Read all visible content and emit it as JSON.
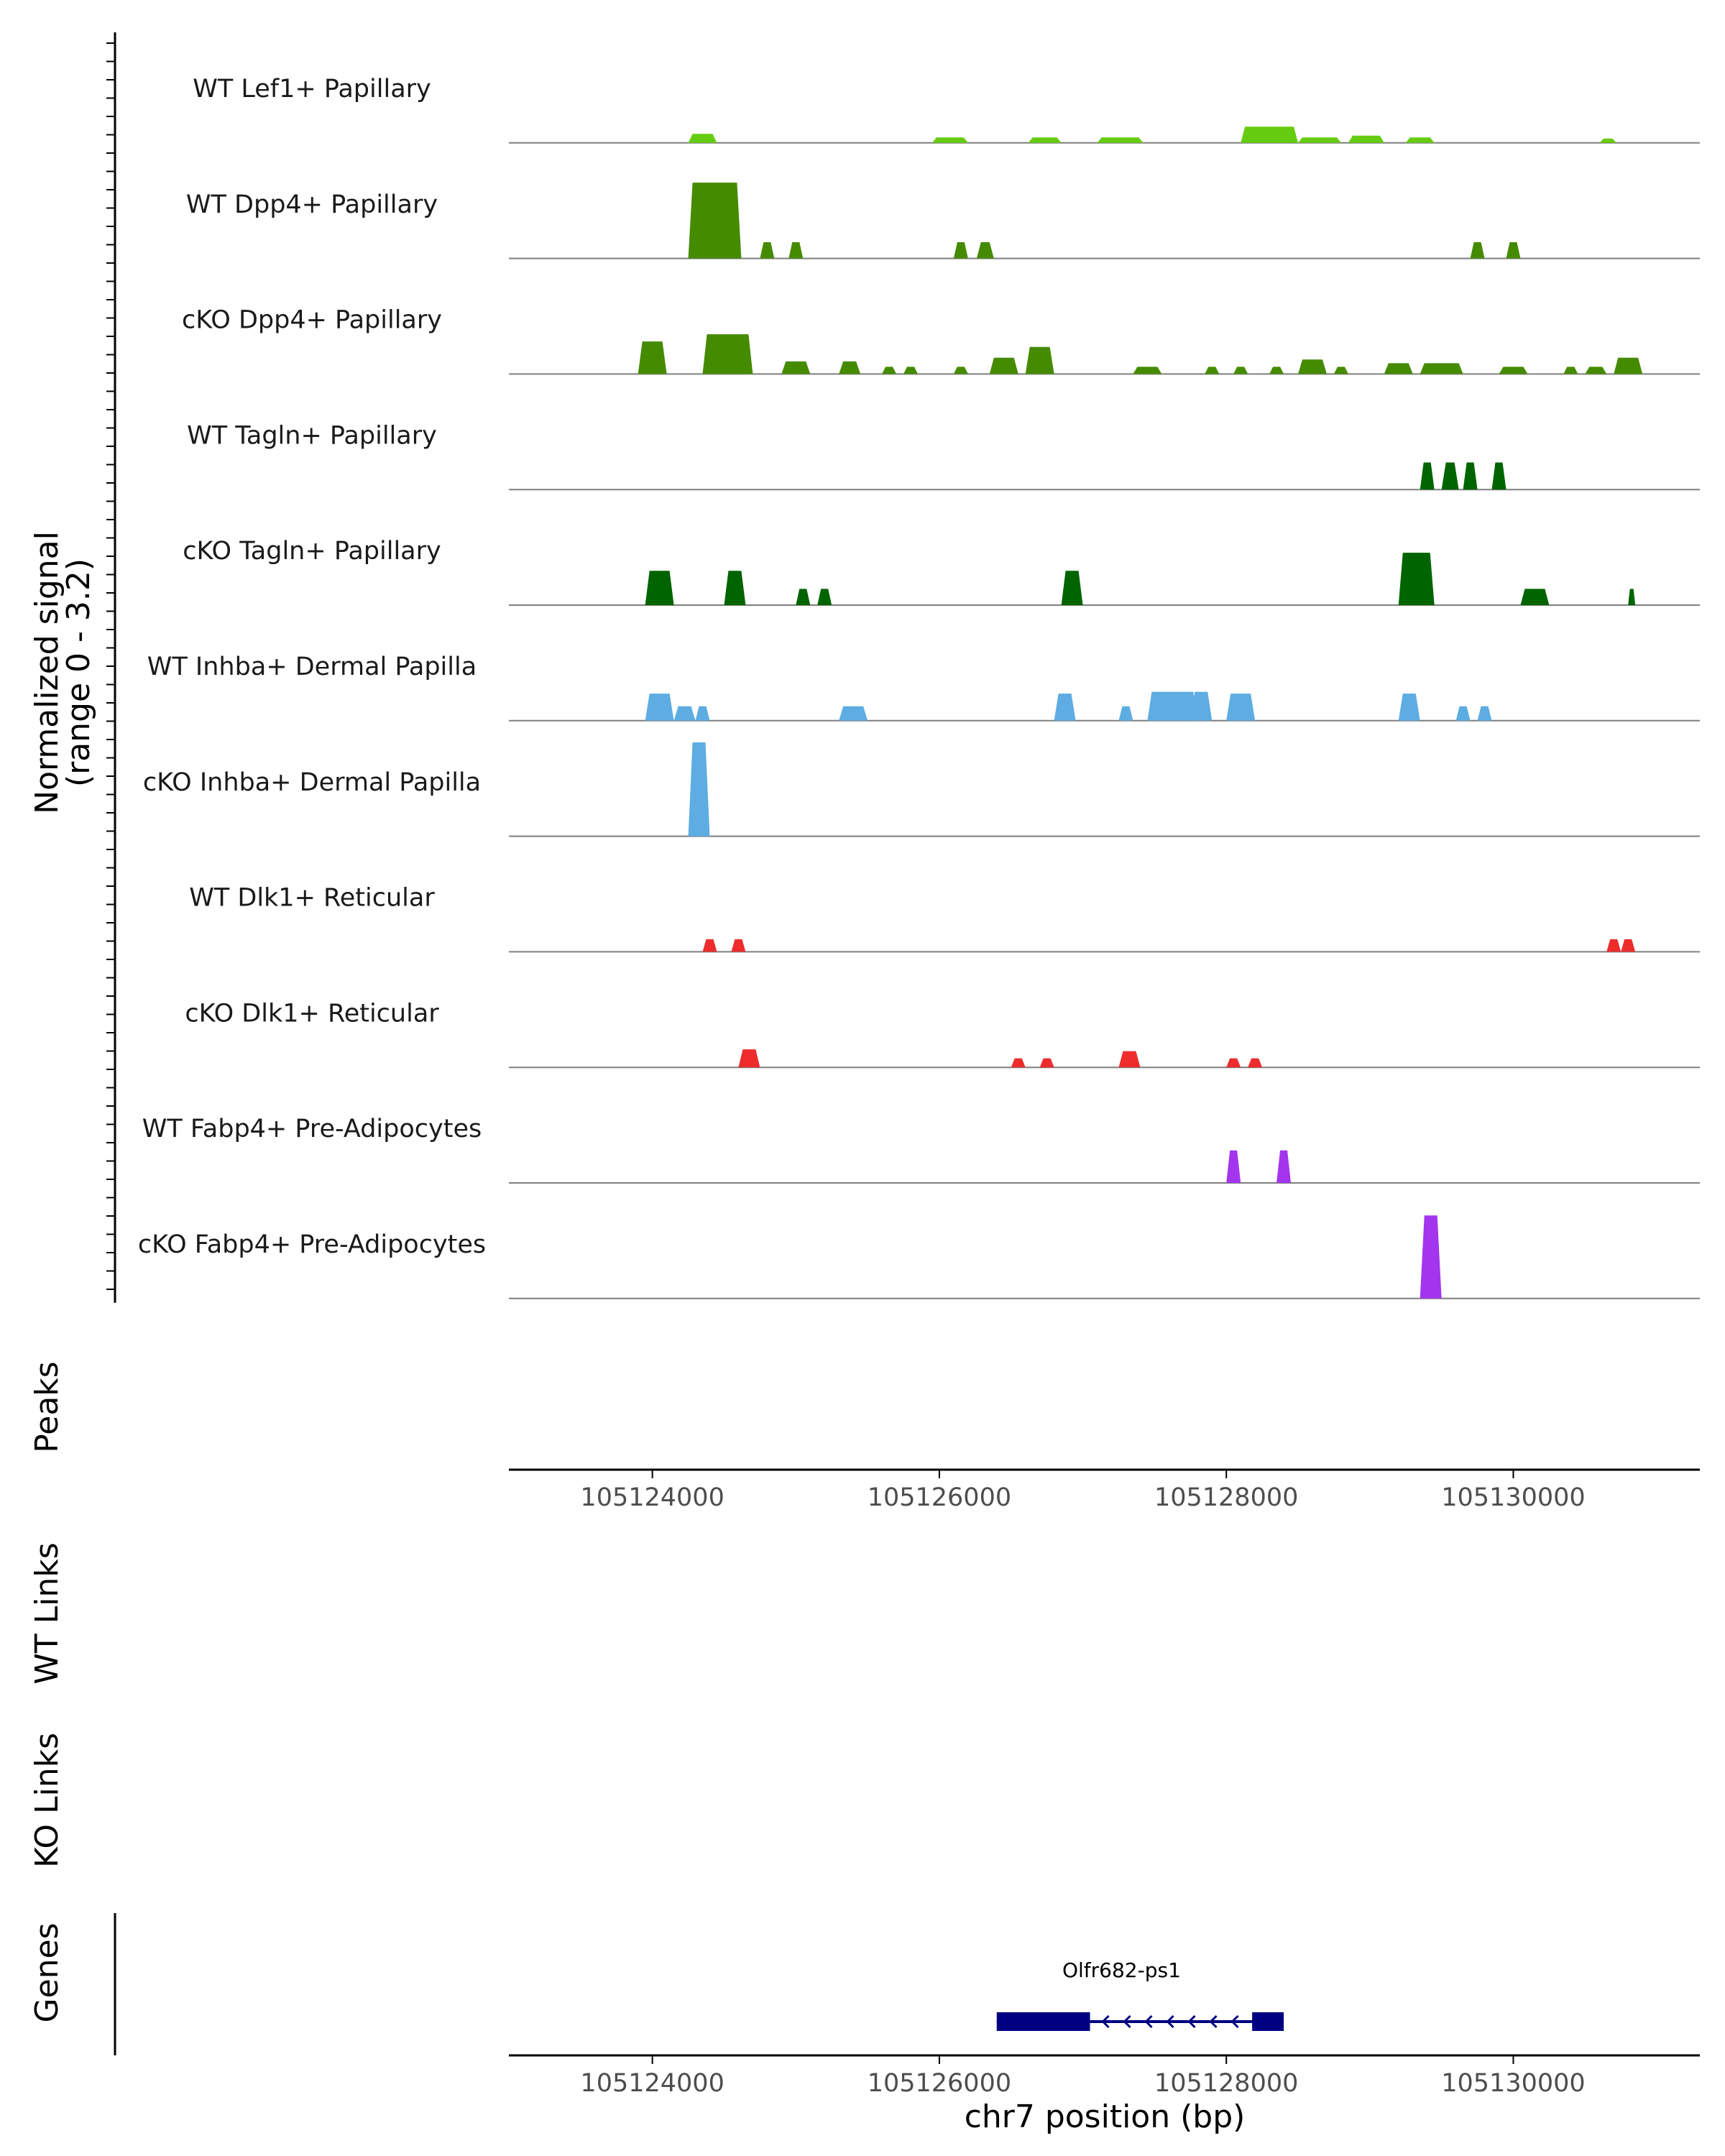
{
  "chart_data": {
    "type": "area",
    "title": "",
    "region": {
      "chromosome": "chr7",
      "start": 105123000,
      "end": 105131300
    },
    "coverage": {
      "ylabel_line1": "Normalized signal",
      "ylabel_line2": "(range 0 - 3.2)",
      "ylim": [
        0,
        3.2
      ],
      "tracks": [
        {
          "label": "WT Lef1+ Papillary",
          "color": "#66CC11",
          "peaks": [
            [
              105124250,
              105124450,
              0.25
            ],
            [
              105125950,
              105126200,
              0.15
            ],
            [
              105126620,
              105126850,
              0.15
            ],
            [
              105127100,
              105127420,
              0.15
            ],
            [
              105128100,
              105128500,
              0.45
            ],
            [
              105128500,
              105128800,
              0.15
            ],
            [
              105128850,
              105129100,
              0.2
            ],
            [
              105129250,
              105129450,
              0.15
            ],
            [
              105130600,
              105130720,
              0.12
            ]
          ]
        },
        {
          "label": "WT Dpp4+ Papillary",
          "color": "#458B00",
          "peaks": [
            [
              105124250,
              105124620,
              2.1
            ],
            [
              105124750,
              105124850,
              0.45
            ],
            [
              105124950,
              105125050,
              0.45
            ],
            [
              105126100,
              105126200,
              0.45
            ],
            [
              105126260,
              105126380,
              0.45
            ],
            [
              105129700,
              105129800,
              0.45
            ],
            [
              105129950,
              105130050,
              0.45
            ]
          ]
        },
        {
          "label": "cKO Dpp4+ Papillary",
          "color": "#458B00",
          "peaks": [
            [
              105123900,
              105124100,
              0.9
            ],
            [
              105124350,
              105124700,
              1.1
            ],
            [
              105124900,
              105125100,
              0.35
            ],
            [
              105125300,
              105125450,
              0.35
            ],
            [
              105125600,
              105125700,
              0.2
            ],
            [
              105125750,
              105125850,
              0.2
            ],
            [
              105126100,
              105126200,
              0.2
            ],
            [
              105126350,
              105126550,
              0.45
            ],
            [
              105126600,
              105126800,
              0.75
            ],
            [
              105127350,
              105127550,
              0.2
            ],
            [
              105127850,
              105127950,
              0.2
            ],
            [
              105128050,
              105128150,
              0.2
            ],
            [
              105128300,
              105128400,
              0.2
            ],
            [
              105128500,
              105128700,
              0.4
            ],
            [
              105128750,
              105128850,
              0.2
            ],
            [
              105129100,
              105129300,
              0.3
            ],
            [
              105129350,
              105129650,
              0.3
            ],
            [
              105129900,
              105130100,
              0.2
            ],
            [
              105130350,
              105130450,
              0.2
            ],
            [
              105130500,
              105130650,
              0.2
            ],
            [
              105130700,
              105130900,
              0.45
            ]
          ]
        },
        {
          "label": "WT Tagln+ Papillary",
          "color": "#006400",
          "peaks": [
            [
              105129350,
              105129450,
              0.75
            ],
            [
              105129500,
              105129620,
              0.75
            ],
            [
              105129650,
              105129750,
              0.75
            ],
            [
              105129850,
              105129950,
              0.75
            ]
          ]
        },
        {
          "label": "cKO Tagln+ Papillary",
          "color": "#006400",
          "peaks": [
            [
              105123950,
              105124150,
              0.95
            ],
            [
              105124500,
              105124650,
              0.95
            ],
            [
              105125000,
              105125100,
              0.45
            ],
            [
              105125150,
              105125250,
              0.45
            ],
            [
              105126850,
              105127000,
              0.95
            ],
            [
              105129200,
              105129450,
              1.45
            ],
            [
              105130050,
              105130250,
              0.45
            ],
            [
              105130800,
              105130850,
              0.45
            ]
          ]
        },
        {
          "label": "WT Inhba+ Dermal Papilla",
          "color": "#5DADE2",
          "peaks": [
            [
              105123950,
              105124150,
              0.75
            ],
            [
              105124150,
              105124300,
              0.4
            ],
            [
              105124300,
              105124400,
              0.4
            ],
            [
              105125300,
              105125500,
              0.4
            ],
            [
              105126800,
              105126950,
              0.75
            ],
            [
              105127250,
              105127350,
              0.4
            ],
            [
              105127450,
              105127800,
              0.8
            ],
            [
              105127750,
              105127900,
              0.8
            ],
            [
              105128000,
              105128200,
              0.75
            ],
            [
              105129200,
              105129350,
              0.75
            ],
            [
              105129600,
              105129700,
              0.4
            ],
            [
              105129750,
              105129850,
              0.4
            ]
          ]
        },
        {
          "label": "cKO Inhba+ Dermal Papilla",
          "color": "#5DADE2",
          "peaks": [
            [
              105124250,
              105124400,
              2.6
            ]
          ]
        },
        {
          "label": "WT Dlk1+ Reticular",
          "color": "#EE2C2C",
          "peaks": [
            [
              105124350,
              105124450,
              0.35
            ],
            [
              105124550,
              105124650,
              0.35
            ],
            [
              105130650,
              105130750,
              0.35
            ],
            [
              105130750,
              105130850,
              0.35
            ]
          ]
        },
        {
          "label": "cKO Dlk1+ Reticular",
          "color": "#EE2C2C",
          "peaks": [
            [
              105124600,
              105124750,
              0.5
            ],
            [
              105126500,
              105126600,
              0.25
            ],
            [
              105126700,
              105126800,
              0.25
            ],
            [
              105127250,
              105127400,
              0.45
            ],
            [
              105128000,
              105128100,
              0.25
            ],
            [
              105128150,
              105128250,
              0.25
            ]
          ]
        },
        {
          "label": "WT Fabp4+ Pre-Adipocytes",
          "color": "#A335EE",
          "peaks": [
            [
              105128000,
              105128100,
              0.9
            ],
            [
              105128350,
              105128450,
              0.9
            ]
          ]
        },
        {
          "label": "cKO Fabp4+ Pre-Adipocytes",
          "color": "#A335EE",
          "peaks": [
            [
              105129350,
              105129500,
              2.3
            ]
          ]
        }
      ]
    },
    "panels": {
      "peaks_label": "Peaks",
      "wt_links_label": "WT Links",
      "ko_links_label": "KO Links",
      "genes_label": "Genes"
    },
    "x_axis": {
      "ticks": [
        "105124000",
        "105126000",
        "105128000",
        "105130000"
      ],
      "tick_values": [
        105124000,
        105126000,
        105128000,
        105130000
      ],
      "xlabel": "chr7 position (bp)"
    },
    "genes": [
      {
        "name": "Olfr682-ps1",
        "start": 105126400,
        "end": 105128400,
        "strand": "-",
        "color": "#000080",
        "exons": [
          [
            105126400,
            105126600
          ],
          [
            105126580,
            105127050
          ],
          [
            105128180,
            105128400
          ]
        ]
      }
    ]
  }
}
